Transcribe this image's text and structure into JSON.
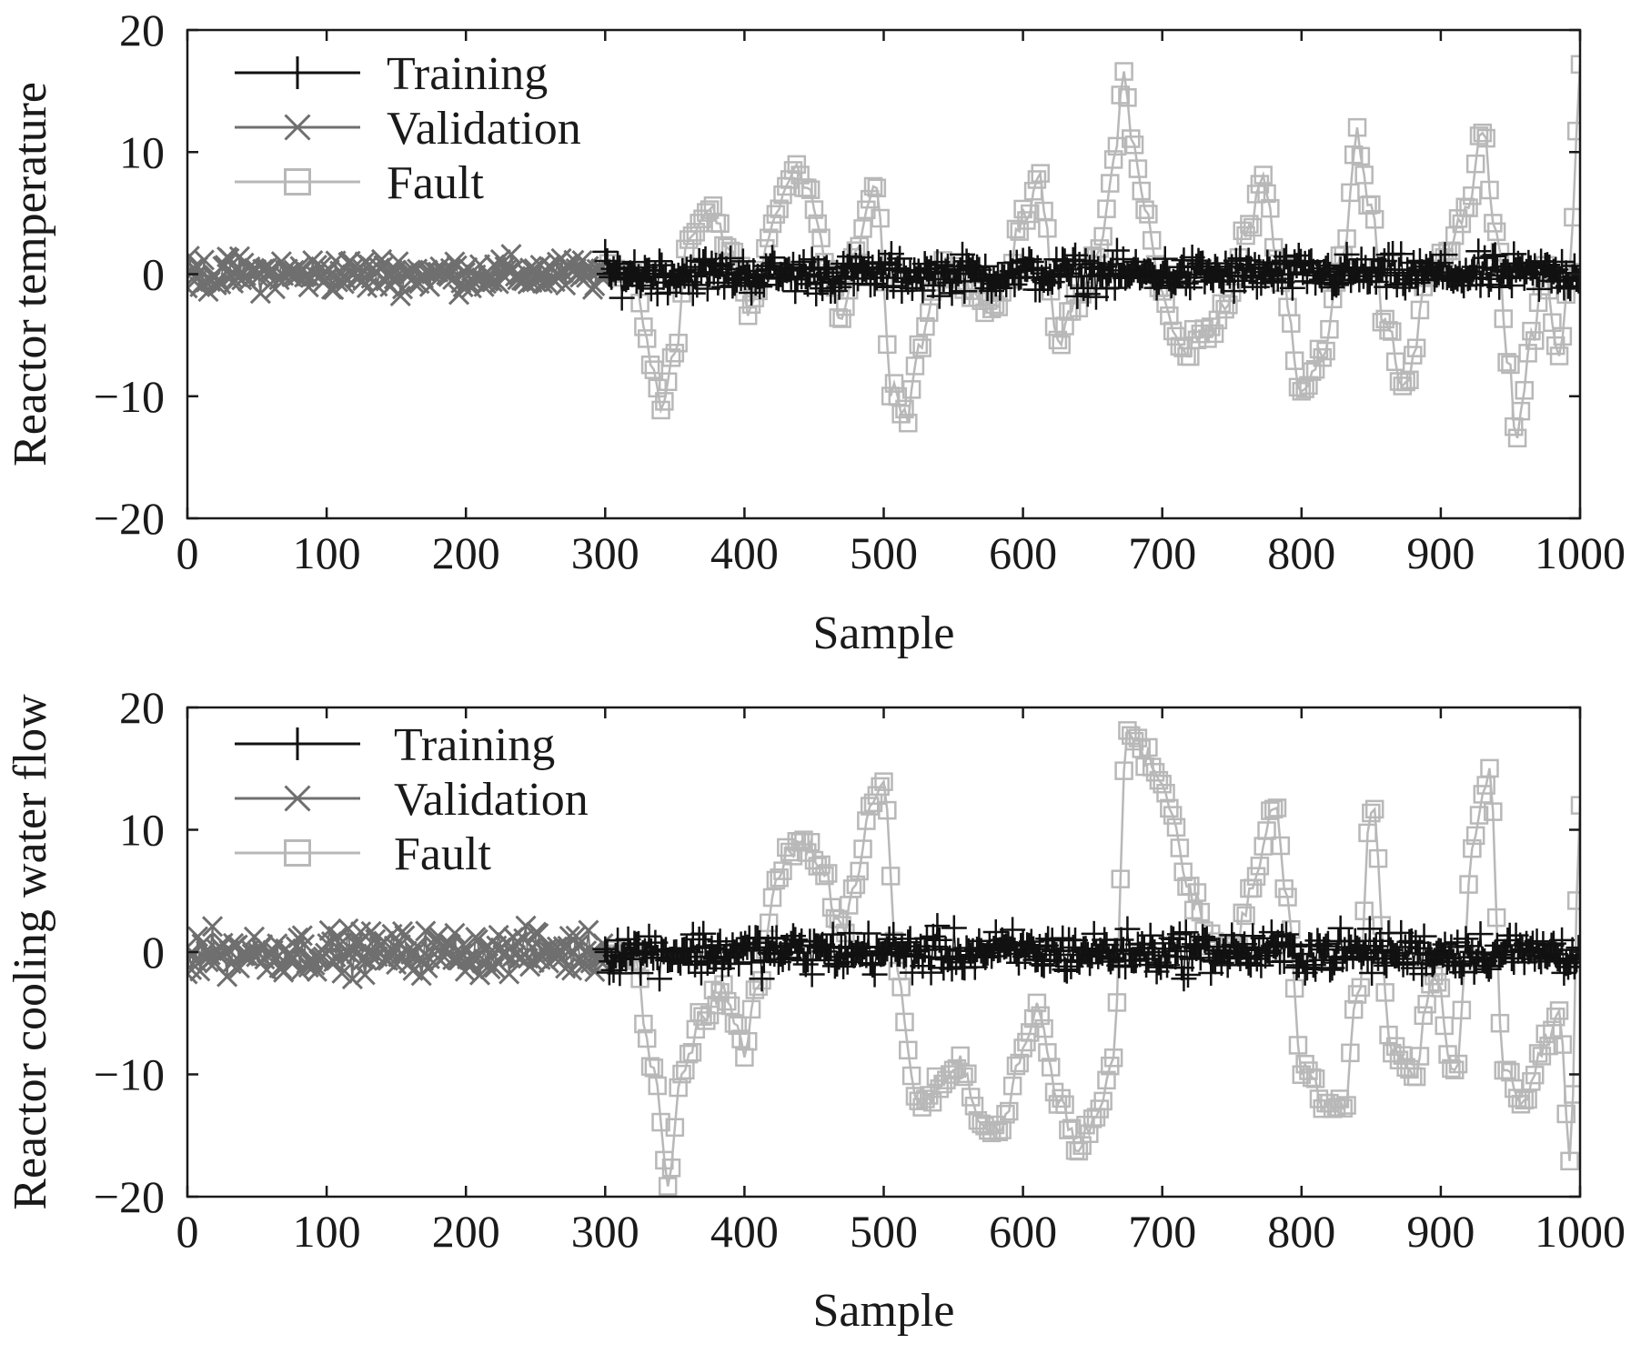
{
  "chart_data": [
    {
      "type": "scatter",
      "xlabel": "Sample",
      "ylabel": "Reactor temperature",
      "xlim": [
        0,
        1000
      ],
      "ylim": [
        -20,
        20
      ],
      "x_ticks": [
        "0",
        "100",
        "200",
        "300",
        "400",
        "500",
        "600",
        "700",
        "800",
        "900",
        "1000"
      ],
      "y_ticks": [
        "20",
        "10",
        "0",
        "−10",
        "−20"
      ],
      "y_tick_values": [
        20,
        10,
        0,
        -10,
        -20
      ],
      "legend_position": "top-left",
      "series": [
        {
          "name": "Training",
          "marker": "plus",
          "color": "#111111",
          "x_range": [
            300,
            1000
          ],
          "level": 0,
          "spread": 1.3
        },
        {
          "name": "Validation",
          "marker": "cross",
          "color": "#6f6f6f",
          "x_range": [
            0,
            300
          ],
          "level": 0,
          "spread": 1.2
        },
        {
          "name": "Fault",
          "marker": "square",
          "color": "#b8b8b8",
          "x": [
            300,
            320,
            335,
            340,
            350,
            360,
            375,
            390,
            405,
            420,
            435,
            445,
            460,
            470,
            480,
            495,
            505,
            515,
            525,
            540,
            555,
            570,
            585,
            600,
            612,
            625,
            640,
            655,
            665,
            672,
            680,
            690,
            700,
            715,
            730,
            745,
            760,
            772,
            785,
            800,
            815,
            830,
            840,
            850,
            860,
            875,
            890,
            905,
            920,
            930,
            940,
            948,
            955,
            965,
            975,
            985,
            992,
            1000
          ],
          "y": [
            0,
            0,
            -8,
            -11,
            -6,
            3,
            5,
            2,
            -3,
            4,
            9,
            7,
            1,
            -4,
            2,
            7,
            -9,
            -12,
            -6,
            0,
            0,
            -3,
            -2,
            5,
            8,
            -5,
            -2,
            2,
            8,
            17,
            10,
            4,
            -2,
            -6,
            -5,
            -3,
            3,
            8,
            0,
            -10,
            -7,
            2,
            11,
            5,
            -4,
            -10,
            0,
            2,
            6,
            12,
            3,
            -6,
            -13,
            -5,
            0,
            -7,
            0,
            16
          ]
        }
      ]
    },
    {
      "type": "scatter",
      "xlabel": "Sample",
      "ylabel": "Reactor cooling water flow",
      "xlim": [
        0,
        1000
      ],
      "ylim": [
        -20,
        20
      ],
      "x_ticks": [
        "0",
        "100",
        "200",
        "300",
        "400",
        "500",
        "600",
        "700",
        "800",
        "900",
        "1000"
      ],
      "y_ticks": [
        "20",
        "10",
        "0",
        "−10",
        "−20"
      ],
      "y_tick_values": [
        20,
        10,
        0,
        -10,
        -20
      ],
      "legend_position": "top-left",
      "series": [
        {
          "name": "Training",
          "marker": "plus",
          "color": "#111111",
          "x_range": [
            300,
            1000
          ],
          "level": 0,
          "spread": 1.5
        },
        {
          "name": "Validation",
          "marker": "cross",
          "color": "#6f6f6f",
          "x_range": [
            0,
            300
          ],
          "level": 0,
          "spread": 1.5
        },
        {
          "name": "Fault",
          "marker": "square",
          "color": "#b8b8b8",
          "x": [
            300,
            320,
            335,
            345,
            355,
            370,
            385,
            400,
            410,
            425,
            440,
            455,
            470,
            480,
            490,
            500,
            510,
            525,
            540,
            555,
            570,
            585,
            600,
            612,
            625,
            640,
            655,
            665,
            675,
            690,
            705,
            720,
            735,
            750,
            765,
            780,
            790,
            800,
            815,
            830,
            840,
            850,
            865,
            880,
            895,
            910,
            925,
            935,
            945,
            960,
            975,
            985,
            993,
            1000
          ],
          "y": [
            0,
            0,
            -10,
            -19,
            -10,
            -5,
            -3,
            -8,
            -3,
            7,
            9,
            7,
            2,
            6,
            12,
            14,
            -2,
            -13,
            -11,
            -9,
            -14,
            -14,
            -8,
            -5,
            -12,
            -16,
            -13,
            -8,
            18,
            16,
            12,
            5,
            1,
            0,
            5,
            12,
            5,
            -10,
            -12,
            -13,
            -4,
            12,
            -8,
            -10,
            -2,
            -10,
            10,
            15,
            -10,
            -12,
            -8,
            -5,
            -17,
            12
          ]
        }
      ]
    }
  ]
}
